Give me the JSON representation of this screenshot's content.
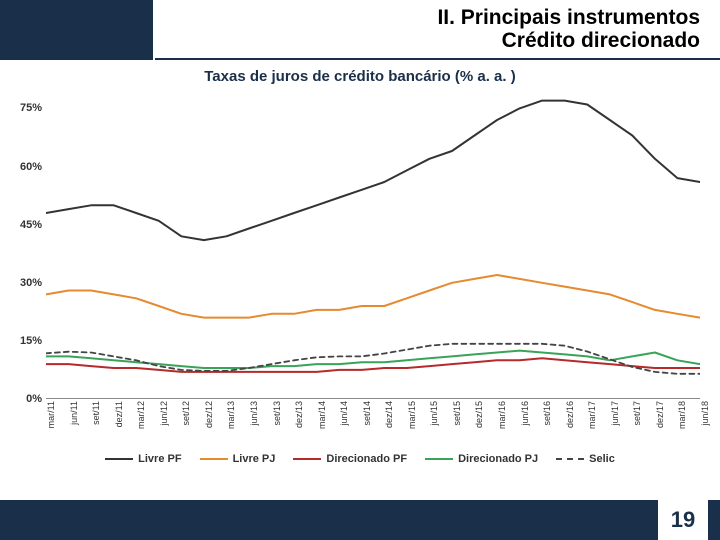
{
  "header": {
    "line1": "II. Principais instrumentos",
    "line2": "Crédito direcionado",
    "header_bg": "#1a2f4a"
  },
  "chart": {
    "title": "Taxas de juros de crédito bancário (% a. a. )",
    "title_color": "#1a2f4a",
    "title_fontsize": 15,
    "background_color": "#ffffff",
    "border_color": "#888888",
    "ylim": [
      0,
      80
    ],
    "yticks": [
      0,
      15,
      30,
      45,
      60,
      75
    ],
    "ytick_labels": [
      "0%",
      "15%",
      "30%",
      "45%",
      "60%",
      "75%"
    ],
    "ylabel_fontsize": 11,
    "x_categories": [
      "mar/11",
      "jun/11",
      "set/11",
      "dez/11",
      "mar/12",
      "jun/12",
      "set/12",
      "dez/12",
      "mar/13",
      "jun/13",
      "set/13",
      "dez/13",
      "mar/14",
      "jun/14",
      "set/14",
      "dez/14",
      "mar/15",
      "jun/15",
      "set/15",
      "dez/15",
      "mar/16",
      "jun/16",
      "set/16",
      "dez/16",
      "mar/17",
      "jun/17",
      "set/17",
      "dez/17",
      "mar/18",
      "jun/18"
    ],
    "xlabel_fontsize": 9,
    "series": [
      {
        "name": "Livre PF",
        "color": "#333333",
        "width": 2.0,
        "dash": "none",
        "values": [
          48,
          49,
          50,
          50,
          48,
          46,
          42,
          41,
          42,
          44,
          46,
          48,
          50,
          52,
          54,
          56,
          59,
          62,
          64,
          68,
          72,
          75,
          77,
          77,
          76,
          72,
          68,
          62,
          57,
          56
        ]
      },
      {
        "name": "Livre PJ",
        "color": "#e58a2e",
        "width": 2.0,
        "dash": "none",
        "values": [
          27,
          28,
          28,
          27,
          26,
          24,
          22,
          21,
          21,
          21,
          22,
          22,
          23,
          23,
          24,
          24,
          26,
          28,
          30,
          31,
          32,
          31,
          30,
          29,
          28,
          27,
          25,
          23,
          22,
          21
        ]
      },
      {
        "name": "Direcionado PF",
        "color": "#b52a2a",
        "width": 2.0,
        "dash": "none",
        "values": [
          9,
          9,
          8.5,
          8,
          8,
          7.5,
          7,
          7,
          7,
          7,
          7,
          7,
          7,
          7.5,
          7.5,
          8,
          8,
          8.5,
          9,
          9.5,
          10,
          10,
          10.5,
          10,
          9.5,
          9,
          8.5,
          8,
          8,
          8
        ]
      },
      {
        "name": "Direcionado PJ",
        "color": "#3aa35a",
        "width": 2.0,
        "dash": "none",
        "values": [
          11,
          11,
          10.5,
          10,
          9.5,
          9,
          8.5,
          8,
          8,
          8,
          8.5,
          8.5,
          9,
          9,
          9.5,
          9.5,
          10,
          10.5,
          11,
          11.5,
          12,
          12.5,
          12,
          11.5,
          11,
          10,
          11,
          12,
          10,
          9
        ]
      },
      {
        "name": "Selic",
        "color": "#444444",
        "width": 1.8,
        "dash": "5,4",
        "values": [
          11.8,
          12.2,
          12.0,
          11.0,
          10.0,
          8.5,
          7.5,
          7.25,
          7.25,
          8.0,
          9.0,
          10.0,
          10.75,
          11.0,
          11.0,
          11.75,
          12.75,
          13.75,
          14.25,
          14.25,
          14.25,
          14.25,
          14.25,
          13.75,
          12.25,
          10.25,
          8.25,
          7.0,
          6.5,
          6.5
        ]
      }
    ],
    "legend": {
      "position": "bottom",
      "fontsize": 11,
      "gap": 18,
      "items": [
        {
          "label": "Livre PF",
          "color": "#333333",
          "style": "solid"
        },
        {
          "label": "Livre PJ",
          "color": "#e58a2e",
          "style": "solid"
        },
        {
          "label": "Direcionado PF",
          "color": "#b52a2a",
          "style": "solid"
        },
        {
          "label": "Direcionado PJ",
          "color": "#3aa35a",
          "style": "solid"
        },
        {
          "label": "Selic",
          "color": "#444444",
          "style": "dash"
        }
      ]
    }
  },
  "footer": {
    "page_number": "19",
    "bg": "#1a2f4a"
  }
}
